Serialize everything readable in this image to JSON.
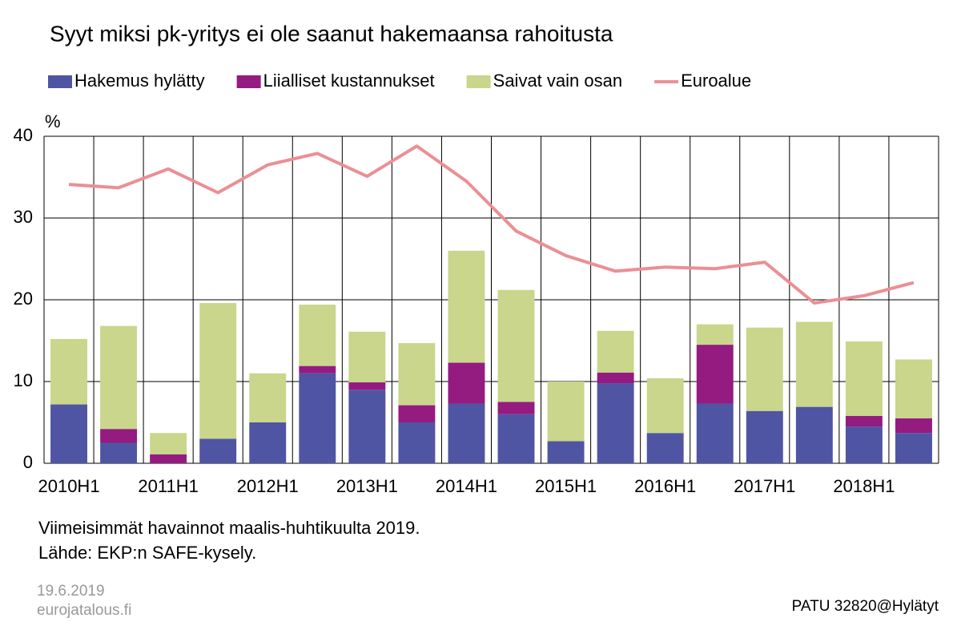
{
  "chart_data": {
    "type": "bar",
    "stacked": true,
    "title": "Syyt miksi pk-yritys ei ole saanut hakemaansa rahoitusta",
    "y_unit": "%",
    "categories": [
      "2010H1",
      null,
      "2011H1",
      null,
      "2012H1",
      null,
      "2013H1",
      null,
      "2014H1",
      null,
      "2015H1",
      null,
      "2016H1",
      null,
      "2017H1",
      null,
      "2018H1",
      null
    ],
    "series": [
      {
        "name": "Hakemus hylätty",
        "color": "#4f55a3",
        "values": [
          7.2,
          2.5,
          0,
          3.0,
          5.0,
          11.0,
          9.0,
          5.0,
          7.3,
          6.0,
          2.7,
          9.8,
          3.7,
          7.3,
          6.4,
          6.9,
          4.5,
          3.7
        ]
      },
      {
        "name": "Liialliset kustannukset",
        "color": "#941b80",
        "values": [
          0,
          1.7,
          1.1,
          0,
          0,
          0.9,
          0.9,
          2.1,
          5.0,
          1.5,
          0,
          1.3,
          0,
          7.2,
          0,
          0,
          1.3,
          1.8
        ]
      },
      {
        "name": "Saivat vain osan",
        "color": "#c9d68b",
        "values": [
          8.0,
          12.6,
          2.6,
          16.6,
          6.0,
          7.5,
          6.2,
          7.6,
          13.7,
          13.7,
          7.3,
          5.1,
          6.7,
          2.5,
          10.2,
          10.4,
          9.1,
          7.2
        ]
      },
      {
        "name": "Euroalue",
        "type": "line",
        "color": "#eb8f95",
        "values": [
          34.1,
          33.7,
          36.0,
          33.1,
          36.5,
          37.9,
          35.1,
          38.8,
          34.5,
          28.4,
          25.4,
          23.5,
          24.0,
          23.8,
          24.6,
          19.6,
          20.5,
          22.1
        ]
      }
    ],
    "ylim": [
      0,
      40
    ],
    "yticks": [
      0,
      10,
      20,
      30,
      40
    ],
    "grid": true,
    "legend": "top",
    "notes": [
      "Viimeisimmät havainnot maalis-huhtikuulta 2019.",
      "Lähde: EKP:n SAFE-kysely."
    ],
    "date": "19.6.2019",
    "site": "eurojatalous.fi",
    "code": "PATU 32820@Hylätyt"
  }
}
